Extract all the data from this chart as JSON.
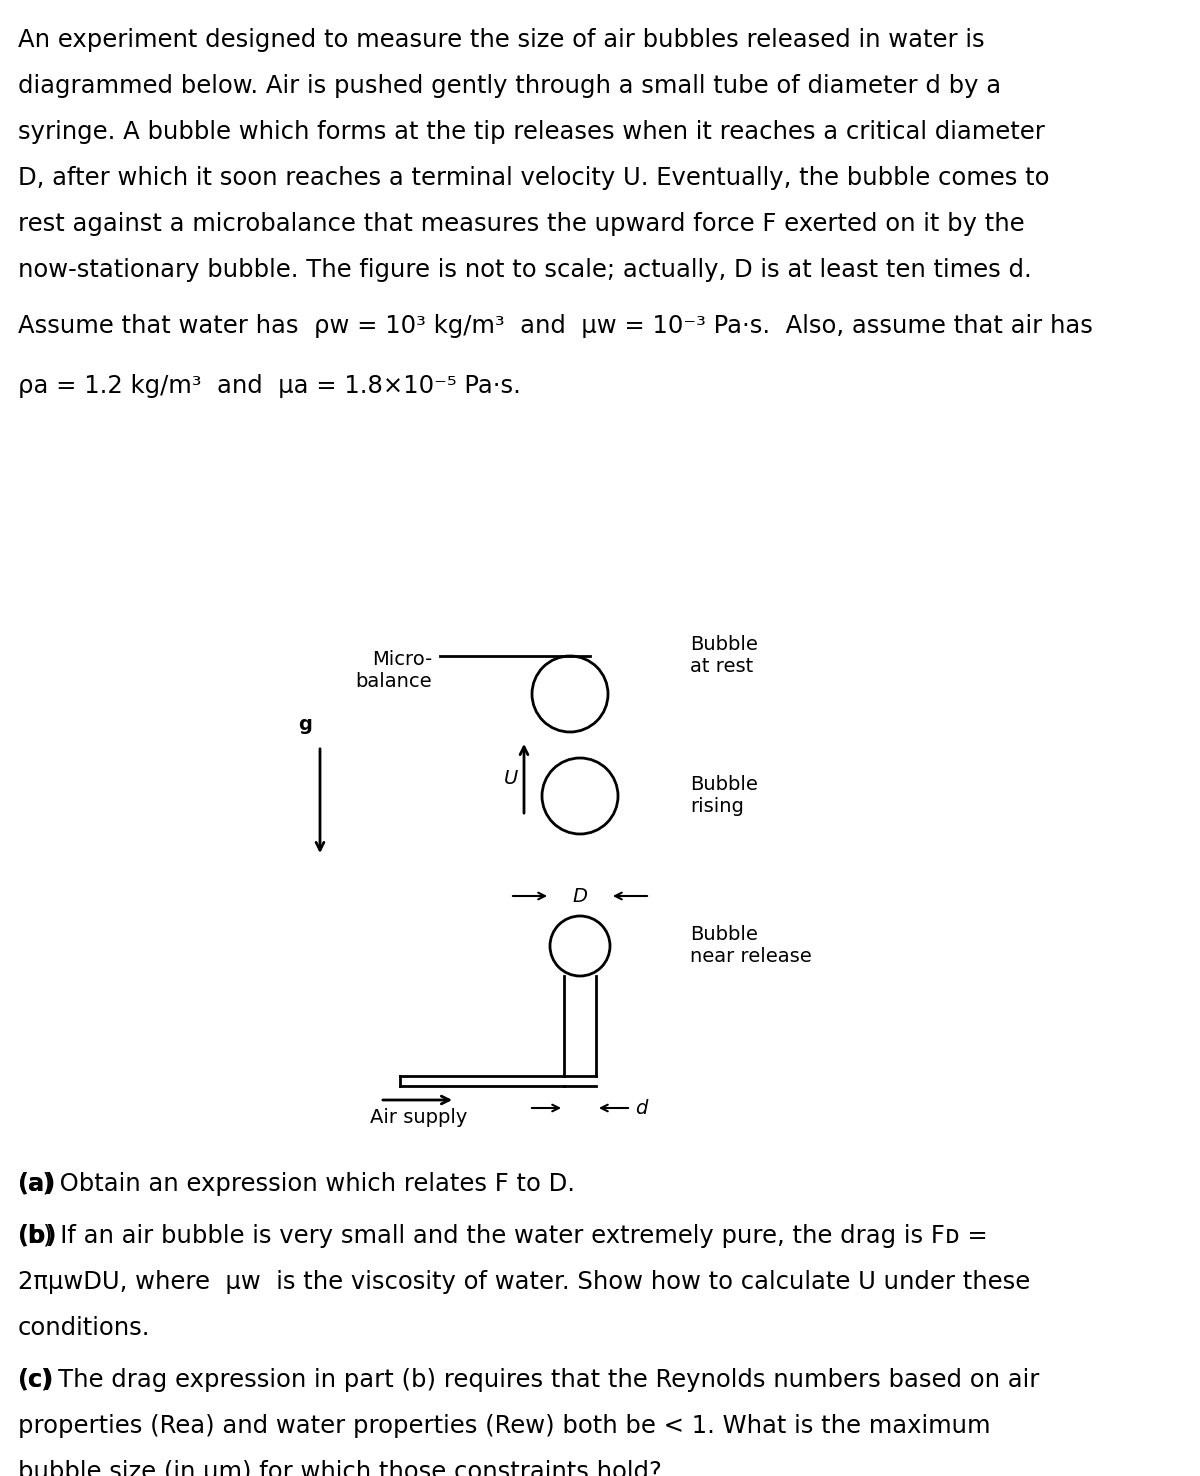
{
  "background_color": "#ffffff",
  "text_color": "#000000",
  "para1_lines": [
    "An experiment designed to measure the size of air bubbles released in water is",
    "diagrammed below. Air is pushed gently through a small tube of diameter d by a",
    "syringe. A bubble which forms at the tip releases when it reaches a critical diameter",
    "D, after which it soon reaches a terminal velocity U. Eventually, the bubble comes to",
    "rest against a microbalance that measures the upward force F exerted on it by the",
    "now-stationary bubble. The figure is not to scale; actually, D is at least ten times d."
  ],
  "para2": "Assume that water has  ρw = 10³ kg/m³  and  μw = 10⁻³ Pa·s.  Also, assume that air has",
  "para3": "ρa = 1.2 kg/m³  and  μa = 1.8×10⁻⁵ Pa·s.",
  "label_microbalance": "Micro-\nbalance",
  "label_bubble_at_rest": "Bubble\nat rest",
  "label_bubble_rising": "Bubble\nrising",
  "label_bubble_near_release": "Bubble\nnear release",
  "label_air_supply": "Air supply",
  "label_g": "g",
  "label_U": "U",
  "label_D": "D",
  "label_d": "d",
  "qa_line1": "(a) Obtain an expression which relates F to D.",
  "qb_lines": [
    "(b) If an air bubble is very small and the water extremely pure, the drag is Fᴅ =",
    "2πμwDU, where  μw  is the viscosity of water. Show how to calculate U under these",
    "conditions."
  ],
  "qc_lines": [
    "(c) The drag expression in part (b) requires that the Reynolds numbers based on air",
    "properties (Rea) and water properties (Rew) both be < 1. What is the maximum",
    "bubble size (in μm) for which those constraints hold?"
  ],
  "fs_main": 17.5,
  "fs_diagram": 14,
  "fig_width": 12.0,
  "fig_height": 14.76
}
